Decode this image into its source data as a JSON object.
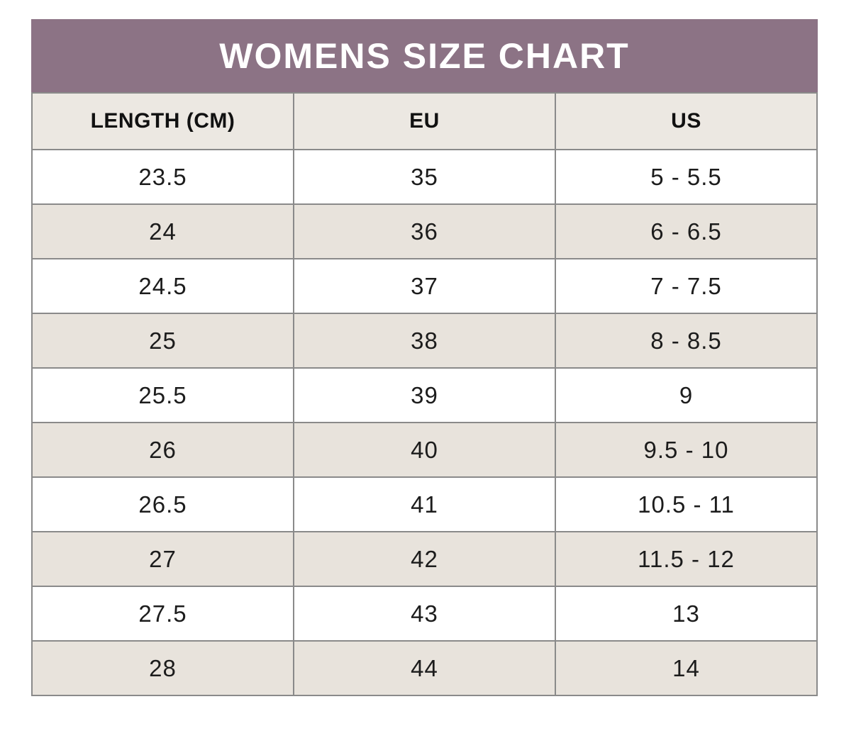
{
  "chart_data": {
    "type": "table",
    "title": "WOMENS SIZE CHART",
    "columns": [
      "LENGTH (CM)",
      "EU",
      "US"
    ],
    "rows": [
      [
        "23.5",
        "35",
        "5 - 5.5"
      ],
      [
        "24",
        "36",
        "6 - 6.5"
      ],
      [
        "24.5",
        "37",
        "7 - 7.5"
      ],
      [
        "25",
        "38",
        "8 - 8.5"
      ],
      [
        "25.5",
        "39",
        "9"
      ],
      [
        "26",
        "40",
        "9.5 - 10"
      ],
      [
        "26.5",
        "41",
        "10.5 - 11"
      ],
      [
        "27",
        "42",
        "11.5 - 12"
      ],
      [
        "27.5",
        "43",
        "13"
      ],
      [
        "28",
        "44",
        "14"
      ]
    ],
    "layout": {
      "row_striping": "white / warm-gray alternating, starting white",
      "grid": "on",
      "column_alignment": "center"
    }
  },
  "colors": {
    "page_bg": "#ffffff",
    "title_bg": "#8c7385",
    "title_text": "#ffffff",
    "header_bg": "#ece8e2",
    "header_text": "#111111",
    "row_bg": "#ffffff",
    "row_alt_bg": "#e8e3dc",
    "cell_text": "#1c1c1c",
    "grid_border": "#8a8a8a"
  }
}
